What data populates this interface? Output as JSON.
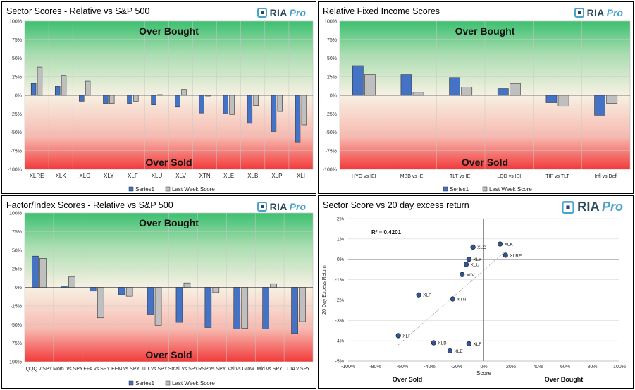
{
  "logo": {
    "ria": "RIA",
    "pro": "Pro"
  },
  "chart_data": [
    {
      "id": "sector",
      "type": "bar",
      "title": "Sector Scores - Relative vs S&P 500",
      "top_label": "Over Bought",
      "bottom_label": "Over Sold",
      "ylim": [
        -100,
        100
      ],
      "yticks": [
        "100%",
        "75%",
        "50%",
        "25%",
        "0%",
        "-25%",
        "-50%",
        "-75%",
        "-100%"
      ],
      "categories": [
        "XLRE",
        "XLK",
        "XLC",
        "XLY",
        "XLF",
        "XLU",
        "XLV",
        "XTN",
        "XLE",
        "XLB",
        "XLP",
        "XLI"
      ],
      "series": [
        {
          "name": "Series1",
          "color": "#4472c4",
          "values": [
            16,
            12,
            -8,
            -11,
            -11,
            -13,
            -16,
            -24,
            -25,
            -38,
            -49,
            -64
          ]
        },
        {
          "name": "Last Week Score",
          "color": "#bfbfbf",
          "values": [
            38,
            26,
            19,
            -11,
            -8,
            1,
            8,
            -1,
            -26,
            -14,
            -22,
            -40
          ]
        }
      ]
    },
    {
      "id": "fixed",
      "type": "bar",
      "title": "Relative Fixed Income Scores",
      "top_label": "Over Bought",
      "bottom_label": "Over Sold",
      "ylim": [
        -100,
        100
      ],
      "yticks": [
        "100%",
        "75%",
        "50%",
        "25%",
        "0%",
        "-25%",
        "-50%",
        "-75%",
        "-100%"
      ],
      "categories": [
        "HYG vs IEI",
        "MBB vs IEI",
        "TLT vs IEI",
        "LQD vs IEI",
        "TIP vs TLT",
        "Infl vs Defl"
      ],
      "series": [
        {
          "name": "Series1",
          "color": "#4472c4",
          "values": [
            40,
            28,
            24,
            9,
            -10,
            -27
          ]
        },
        {
          "name": "Last Week Score",
          "color": "#bfbfbf",
          "values": [
            28,
            4,
            11,
            16,
            -15,
            -11
          ]
        }
      ]
    },
    {
      "id": "factor",
      "type": "bar",
      "title": "Factor/Index Scores - Relative vs S&P 500",
      "top_label": "Over Bought",
      "bottom_label": "Over Sold",
      "ylim": [
        -100,
        100
      ],
      "yticks": [
        "100%",
        "75%",
        "50%",
        "25%",
        "0%",
        "-25%",
        "-50%",
        "-75%",
        "-100%"
      ],
      "categories": [
        "QQQ v SPY",
        "Mom. vs SPY",
        "EFA vs SPY",
        "EEM vs SPY",
        "TLT vs SPY",
        "Small vs SPY",
        "RSP vs SPY",
        "Val vs Grow",
        "Mid vs SPY",
        "DIA v SPY"
      ],
      "series": [
        {
          "name": "Series1",
          "color": "#4472c4",
          "values": [
            42,
            2,
            -5,
            -10,
            -36,
            -47,
            -54,
            -56,
            -56,
            -62
          ]
        },
        {
          "name": "Last Week Score",
          "color": "#bfbfbf",
          "values": [
            39,
            14,
            -41,
            -12,
            -51,
            6,
            -7,
            -55,
            5,
            -46
          ]
        }
      ]
    },
    {
      "id": "scatter",
      "type": "scatter",
      "title": "Sector Score vs 20 day excess return",
      "xlabel": "Score",
      "ylabel": "20 Day Excess Return",
      "xlim": [
        -100,
        100
      ],
      "ylim": [
        -5,
        2
      ],
      "xticks": [
        "-100%",
        "-80%",
        "-60%",
        "-40%",
        "-20%",
        "0%",
        "20%",
        "40%",
        "60%",
        "80%",
        "100%"
      ],
      "yticks": [
        "2%",
        "1%",
        "0%",
        "-1%",
        "-2%",
        "-3%",
        "-4%",
        "-5%"
      ],
      "r2_label": "R² = 0.4201",
      "bottom_left_label": "Over Sold",
      "bottom_right_label": "Over Bought",
      "points": [
        {
          "label": "XLK",
          "x": 12,
          "y": 0.75
        },
        {
          "label": "XLRE",
          "x": 16,
          "y": 0.2
        },
        {
          "label": "XLC",
          "x": -8,
          "y": 0.6
        },
        {
          "label": "XLY",
          "x": -11,
          "y": 0.0
        },
        {
          "label": "XLU",
          "x": -13,
          "y": -0.25
        },
        {
          "label": "XLV",
          "x": -16,
          "y": -0.75
        },
        {
          "label": "XTN",
          "x": -23,
          "y": -1.95
        },
        {
          "label": "XLP",
          "x": -48,
          "y": -1.75
        },
        {
          "label": "XLI",
          "x": -63,
          "y": -3.75
        },
        {
          "label": "XLB",
          "x": -37,
          "y": -4.1
        },
        {
          "label": "XLF",
          "x": -11,
          "y": -4.15
        },
        {
          "label": "XLE",
          "x": -25,
          "y": -4.5
        }
      ],
      "trendline": {
        "x": [
          -63,
          16
        ],
        "y": [
          -4.2,
          0.4
        ]
      }
    }
  ]
}
